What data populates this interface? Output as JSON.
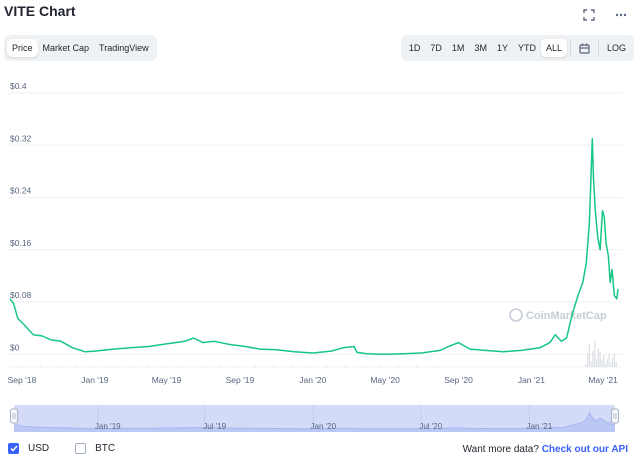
{
  "header": {
    "title": "VITE Chart"
  },
  "view_tabs": [
    {
      "label": "Price",
      "active": true
    },
    {
      "label": "Market Cap",
      "active": false
    },
    {
      "label": "TradingView",
      "active": false
    }
  ],
  "range_tabs": [
    {
      "label": "1D",
      "active": false
    },
    {
      "label": "7D",
      "active": false
    },
    {
      "label": "1M",
      "active": false
    },
    {
      "label": "3M",
      "active": false
    },
    {
      "label": "1Y",
      "active": false
    },
    {
      "label": "YTD",
      "active": false
    },
    {
      "label": "ALL",
      "active": true
    }
  ],
  "log_label": "LOG",
  "legend": {
    "usd": "USD",
    "btc": "BTC",
    "usd_checked": true,
    "btc_checked": false
  },
  "footer": {
    "prompt": "Want more data?",
    "link": "Check out our API"
  },
  "watermark": "CoinMarketCap",
  "colors": {
    "line": "#16c784",
    "accent": "#3861fb",
    "nav_fill": "#d4dbf8",
    "nav_line": "#a6b5ef"
  },
  "chart_data": {
    "type": "line",
    "title": "VITE Chart",
    "ylabel": "",
    "xlabel": "",
    "ylim": [
      -0.024,
      0.4
    ],
    "y_ticks": [
      "$0",
      "$0.08",
      "$0.16",
      "$0.24",
      "$0.32",
      "$0.4"
    ],
    "y_tick_values": [
      0,
      0.08,
      0.16,
      0.24,
      0.32,
      0.4
    ],
    "x_ticks": [
      "Sep '18",
      "Jan '19",
      "May '19",
      "Sep '19",
      "Jan '20",
      "May '20",
      "Sep '20",
      "Jan '21",
      "May '21"
    ],
    "x_tick_dates": [
      "2018-09-01",
      "2019-01-01",
      "2019-05-01",
      "2019-09-01",
      "2020-01-01",
      "2020-05-01",
      "2020-09-01",
      "2021-01-01",
      "2021-05-01"
    ],
    "navigator_ticks": [
      "Jan '19",
      "Jul '19",
      "Jan '20",
      "Jul '20",
      "Jan '21"
    ],
    "navigator_tick_dates": [
      "2019-01-01",
      "2019-07-01",
      "2020-01-01",
      "2020-07-01",
      "2021-01-01"
    ],
    "grid": true,
    "series": [
      {
        "values": [
          [
            "2018-08-12",
            0.085
          ],
          [
            "2018-08-18",
            0.078
          ],
          [
            "2018-08-25",
            0.055
          ],
          [
            "2018-09-05",
            0.045
          ],
          [
            "2018-09-20",
            0.03
          ],
          [
            "2018-10-05",
            0.028
          ],
          [
            "2018-10-20",
            0.022
          ],
          [
            "2018-11-05",
            0.02
          ],
          [
            "2018-11-25",
            0.01
          ],
          [
            "2018-12-15",
            0.004
          ],
          [
            "2019-01-01",
            0.005
          ],
          [
            "2019-02-01",
            0.008
          ],
          [
            "2019-03-01",
            0.01
          ],
          [
            "2019-04-01",
            0.012
          ],
          [
            "2019-05-01",
            0.016
          ],
          [
            "2019-06-01",
            0.02
          ],
          [
            "2019-06-15",
            0.025
          ],
          [
            "2019-07-01",
            0.018
          ],
          [
            "2019-07-20",
            0.02
          ],
          [
            "2019-08-15",
            0.015
          ],
          [
            "2019-09-10",
            0.012
          ],
          [
            "2019-10-05",
            0.008
          ],
          [
            "2019-11-01",
            0.007
          ],
          [
            "2019-12-01",
            0.004
          ],
          [
            "2020-01-01",
            0.002
          ],
          [
            "2020-02-01",
            0.005
          ],
          [
            "2020-02-20",
            0.01
          ],
          [
            "2020-03-10",
            0.012
          ],
          [
            "2020-03-15",
            0.003
          ],
          [
            "2020-04-01",
            0.001
          ],
          [
            "2020-05-01",
            0.0
          ],
          [
            "2020-06-01",
            0.001
          ],
          [
            "2020-07-01",
            0.002
          ],
          [
            "2020-08-01",
            0.006
          ],
          [
            "2020-08-15",
            0.012
          ],
          [
            "2020-09-01",
            0.018
          ],
          [
            "2020-09-20",
            0.008
          ],
          [
            "2020-10-15",
            0.006
          ],
          [
            "2020-11-15",
            0.004
          ],
          [
            "2020-12-15",
            0.006
          ],
          [
            "2021-01-15",
            0.01
          ],
          [
            "2021-02-01",
            0.018
          ],
          [
            "2021-02-10",
            0.03
          ],
          [
            "2021-02-20",
            0.02
          ],
          [
            "2021-03-01",
            0.025
          ],
          [
            "2021-03-10",
            0.06
          ],
          [
            "2021-03-20",
            0.09
          ],
          [
            "2021-03-28",
            0.11
          ],
          [
            "2021-04-03",
            0.14
          ],
          [
            "2021-04-08",
            0.2
          ],
          [
            "2021-04-10",
            0.25
          ],
          [
            "2021-04-13",
            0.33
          ],
          [
            "2021-04-15",
            0.27
          ],
          [
            "2021-04-18",
            0.22
          ],
          [
            "2021-04-22",
            0.18
          ],
          [
            "2021-04-26",
            0.16
          ],
          [
            "2021-04-30",
            0.22
          ],
          [
            "2021-05-03",
            0.21
          ],
          [
            "2021-05-06",
            0.17
          ],
          [
            "2021-05-10",
            0.15
          ],
          [
            "2021-05-13",
            0.11
          ],
          [
            "2021-05-16",
            0.13
          ],
          [
            "2021-05-20",
            0.09
          ],
          [
            "2021-05-24",
            0.085
          ],
          [
            "2021-05-26",
            0.1
          ]
        ]
      }
    ]
  }
}
